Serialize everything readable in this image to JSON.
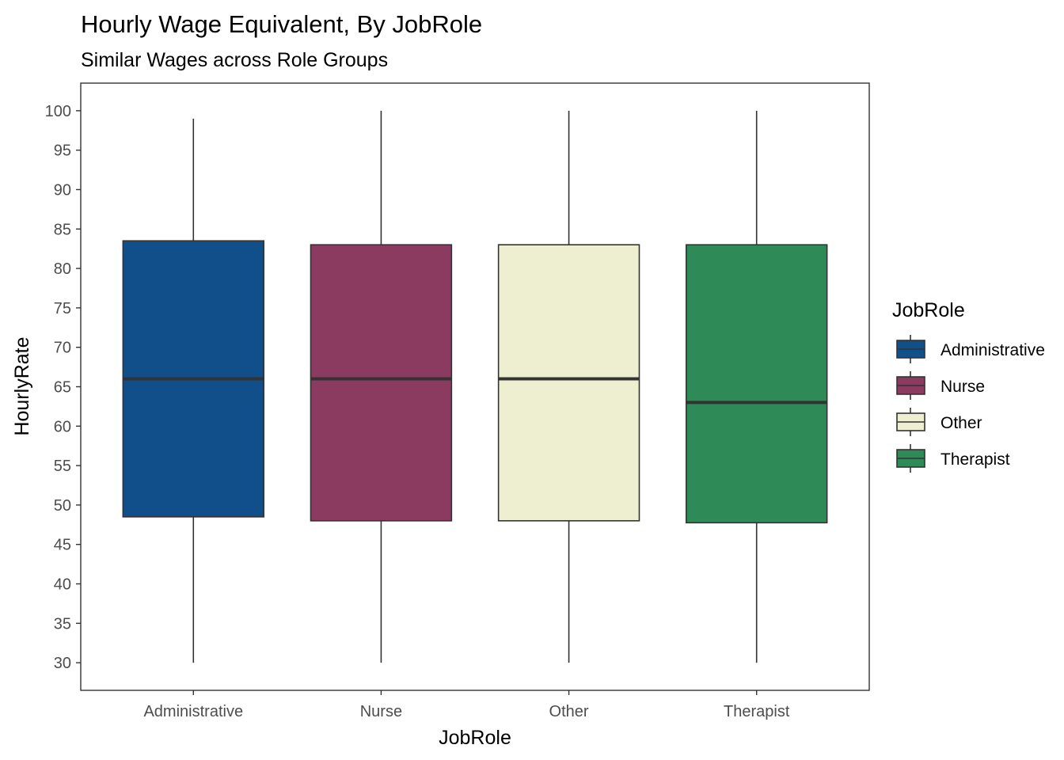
{
  "chart_data": {
    "type": "boxplot",
    "title": "Hourly Wage Equivalent, By JobRole",
    "subtitle": "Similar Wages across Role Groups",
    "xlabel": "JobRole",
    "ylabel": "HourlyRate",
    "ylim": [
      26.5,
      103.5
    ],
    "yticks": [
      30,
      35,
      40,
      45,
      50,
      55,
      60,
      65,
      70,
      75,
      80,
      85,
      90,
      95,
      100
    ],
    "grid": false,
    "legend": {
      "title": "JobRole",
      "position": "right",
      "entries": [
        "Administrative",
        "Nurse",
        "Other",
        "Therapist"
      ]
    },
    "categories": [
      "Administrative",
      "Nurse",
      "Other",
      "Therapist"
    ],
    "boxes": [
      {
        "category": "Administrative",
        "min": 30,
        "q1": 48.5,
        "median": 66,
        "q3": 83.5,
        "max": 99,
        "color": "#114f8a"
      },
      {
        "category": "Nurse",
        "min": 30,
        "q1": 48,
        "median": 66,
        "q3": 83,
        "max": 100,
        "color": "#8b3a60"
      },
      {
        "category": "Other",
        "min": 30,
        "q1": 48,
        "median": 66,
        "q3": 83,
        "max": 100,
        "color": "#eeefd1"
      },
      {
        "category": "Therapist",
        "min": 30,
        "q1": 47.75,
        "median": 63,
        "q3": 83,
        "max": 100,
        "color": "#2e8b57"
      }
    ]
  }
}
